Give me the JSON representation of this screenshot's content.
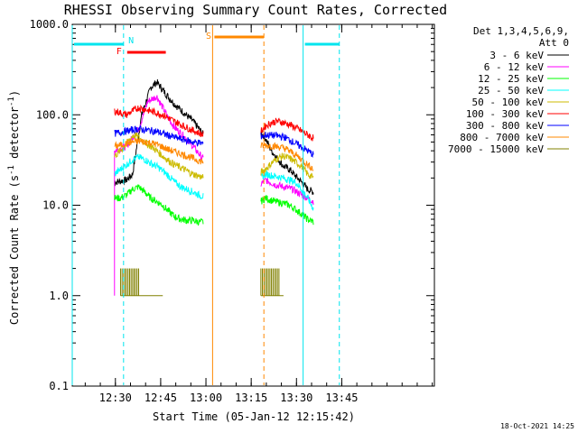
{
  "chart_data": {
    "type": "line",
    "title": "RHESSI Observing Summary Count Rates, Corrected",
    "xlabel": "Start Time (05-Jan-12 12:15:42)",
    "ylabel_main": "Corrected Count Rate (s",
    "ylabel_sup": "-1",
    "ylabel_mid": " detector",
    "ylabel_sup2": "-1",
    "ylabel_end": ")",
    "y_scale": "log",
    "ylim": [
      0.1,
      1000
    ],
    "xlim_minutes": [
      0,
      120
    ],
    "x_ticks": [
      {
        "t": 14.3,
        "label": "12:30"
      },
      {
        "t": 29.3,
        "label": "12:45"
      },
      {
        "t": 44.3,
        "label": "13:00"
      },
      {
        "t": 59.3,
        "label": "13:15"
      },
      {
        "t": 74.3,
        "label": "13:30"
      },
      {
        "t": 89.3,
        "label": "13:45"
      }
    ],
    "y_ticks": [
      {
        "v": 1000,
        "label": "1000.0"
      },
      {
        "v": 100,
        "label": "100.0"
      },
      {
        "v": 10,
        "label": "10.0"
      },
      {
        "v": 1,
        "label": "1.0"
      },
      {
        "v": 0.1,
        "label": "0.1"
      }
    ],
    "legend_header": [
      "Det 1,3,4,5,6,9,",
      "Att 0"
    ],
    "series": [
      {
        "name": "3 - 6 keV",
        "color": "#000000",
        "seg1": [
          [
            14.0,
            18
          ],
          [
            18,
            19
          ],
          [
            20,
            22
          ],
          [
            23,
            100
          ],
          [
            26,
            200
          ],
          [
            28,
            230
          ],
          [
            31,
            170
          ],
          [
            34,
            130
          ],
          [
            37,
            105
          ],
          [
            40,
            85
          ],
          [
            42,
            70
          ],
          [
            43.5,
            60
          ]
        ],
        "seg2": [
          [
            62.5,
            65
          ],
          [
            64,
            55
          ],
          [
            66,
            40
          ],
          [
            68,
            33
          ],
          [
            70,
            27
          ],
          [
            72,
            25
          ],
          [
            74,
            21
          ],
          [
            76,
            18
          ],
          [
            78,
            15
          ],
          [
            80,
            14
          ]
        ]
      },
      {
        "name": "6 - 12 keV",
        "color": "#ff00ff",
        "seg1": [
          [
            14.0,
            40
          ],
          [
            18,
            45
          ],
          [
            22,
            70
          ],
          [
            25,
            140
          ],
          [
            28,
            160
          ],
          [
            30,
            120
          ],
          [
            32,
            90
          ],
          [
            34,
            72
          ],
          [
            37,
            58
          ],
          [
            40,
            45
          ],
          [
            42,
            37
          ],
          [
            43.5,
            32
          ]
        ],
        "seg2": [
          [
            62.5,
            17
          ],
          [
            64,
            19
          ],
          [
            67,
            17
          ],
          [
            70,
            16
          ],
          [
            73,
            15
          ],
          [
            76,
            13
          ],
          [
            78,
            12
          ],
          [
            80,
            11
          ]
        ]
      },
      {
        "name": "12 - 25 keV",
        "color": "#00ff00",
        "seg1": [
          [
            14.0,
            12
          ],
          [
            16,
            12
          ],
          [
            18,
            13
          ],
          [
            20,
            15
          ],
          [
            22,
            16
          ],
          [
            24,
            14
          ],
          [
            26,
            12
          ],
          [
            28,
            11
          ],
          [
            30,
            10
          ],
          [
            32,
            8.5
          ],
          [
            34,
            7.5
          ],
          [
            36,
            7.0
          ],
          [
            38,
            6.8
          ],
          [
            40,
            6.8
          ],
          [
            42,
            6.5
          ],
          [
            43.5,
            6.5
          ]
        ],
        "seg2": [
          [
            62.5,
            11
          ],
          [
            64,
            12
          ],
          [
            67,
            11
          ],
          [
            70,
            10.5
          ],
          [
            72,
            10
          ],
          [
            74,
            9
          ],
          [
            76,
            8
          ],
          [
            78,
            7
          ],
          [
            80,
            6.5
          ]
        ]
      },
      {
        "name": "25 - 50 keV",
        "color": "#00ffff",
        "seg1": [
          [
            14.0,
            22
          ],
          [
            16,
            25
          ],
          [
            18,
            28
          ],
          [
            20,
            32
          ],
          [
            22,
            34
          ],
          [
            24,
            32
          ],
          [
            26,
            29
          ],
          [
            28,
            27
          ],
          [
            30,
            24
          ],
          [
            32,
            21
          ],
          [
            34,
            18
          ],
          [
            36,
            16
          ],
          [
            38,
            15
          ],
          [
            40,
            14
          ],
          [
            42,
            13
          ],
          [
            43.5,
            12.5
          ]
        ],
        "seg2": [
          [
            62.5,
            20
          ],
          [
            64,
            22
          ],
          [
            67,
            21
          ],
          [
            70,
            20
          ],
          [
            72,
            19
          ],
          [
            74,
            18
          ],
          [
            76,
            15
          ],
          [
            78,
            12
          ],
          [
            80,
            9
          ]
        ]
      },
      {
        "name": "50 - 100 keV",
        "color": "#ccbb00",
        "seg1": [
          [
            14.0,
            35
          ],
          [
            16,
            40
          ],
          [
            18,
            48
          ],
          [
            20,
            58
          ],
          [
            21,
            60
          ],
          [
            22,
            56
          ],
          [
            24,
            50
          ],
          [
            26,
            45
          ],
          [
            28,
            40
          ],
          [
            30,
            35
          ],
          [
            32,
            31
          ],
          [
            34,
            28
          ],
          [
            36,
            26
          ],
          [
            38,
            24
          ],
          [
            40,
            22
          ],
          [
            42,
            21
          ],
          [
            43.5,
            20
          ]
        ],
        "seg2": [
          [
            62.5,
            23
          ],
          [
            64,
            25
          ],
          [
            66,
            29
          ],
          [
            68,
            33
          ],
          [
            70,
            35
          ],
          [
            72,
            33
          ],
          [
            74,
            30
          ],
          [
            76,
            27
          ],
          [
            78,
            22
          ],
          [
            80,
            20
          ]
        ]
      },
      {
        "name": "100 - 300 keV",
        "color": "#ff0000",
        "seg1": [
          [
            14.0,
            110
          ],
          [
            16,
            105
          ],
          [
            18,
            100
          ],
          [
            20,
            110
          ],
          [
            22,
            120
          ],
          [
            24,
            115
          ],
          [
            26,
            110
          ],
          [
            28,
            105
          ],
          [
            30,
            100
          ],
          [
            32,
            92
          ],
          [
            34,
            84
          ],
          [
            36,
            78
          ],
          [
            38,
            72
          ],
          [
            40,
            67
          ],
          [
            42,
            63
          ],
          [
            43.5,
            60
          ]
        ],
        "seg2": [
          [
            62.5,
            65
          ],
          [
            64,
            75
          ],
          [
            66,
            82
          ],
          [
            68,
            85
          ],
          [
            70,
            82
          ],
          [
            72,
            78
          ],
          [
            74,
            72
          ],
          [
            76,
            66
          ],
          [
            78,
            60
          ],
          [
            80,
            55
          ]
        ]
      },
      {
        "name": "300 - 800 keV",
        "color": "#0000ff",
        "seg1": [
          [
            14.0,
            62
          ],
          [
            16,
            64
          ],
          [
            18,
            66
          ],
          [
            20,
            68
          ],
          [
            22,
            70
          ],
          [
            24,
            68
          ],
          [
            26,
            67
          ],
          [
            28,
            65
          ],
          [
            30,
            62
          ],
          [
            32,
            59
          ],
          [
            34,
            56
          ],
          [
            36,
            54
          ],
          [
            38,
            52
          ],
          [
            40,
            50
          ],
          [
            42,
            49
          ],
          [
            43.5,
            48
          ]
        ],
        "seg2": [
          [
            62.5,
            58
          ],
          [
            64,
            60
          ],
          [
            67,
            59
          ],
          [
            70,
            57
          ],
          [
            72,
            53
          ],
          [
            74,
            48
          ],
          [
            76,
            44
          ],
          [
            78,
            40
          ],
          [
            80,
            36
          ]
        ]
      },
      {
        "name": "800 - 7000 keV",
        "color": "#ff8800",
        "seg1": [
          [
            14.0,
            45
          ],
          [
            16,
            46
          ],
          [
            18,
            48
          ],
          [
            20,
            50
          ],
          [
            22,
            51
          ],
          [
            24,
            50
          ],
          [
            26,
            49
          ],
          [
            28,
            47
          ],
          [
            30,
            44
          ],
          [
            32,
            41
          ],
          [
            34,
            39
          ],
          [
            36,
            37
          ],
          [
            38,
            35
          ],
          [
            40,
            33
          ],
          [
            42,
            31
          ],
          [
            43.5,
            30
          ]
        ],
        "seg2": [
          [
            62.5,
            45
          ],
          [
            64,
            46
          ],
          [
            67,
            45
          ],
          [
            70,
            43
          ],
          [
            72,
            40
          ],
          [
            74,
            36
          ],
          [
            76,
            32
          ],
          [
            78,
            28
          ],
          [
            80,
            25
          ]
        ]
      },
      {
        "name": "7000 - 15000 keV",
        "color": "#808000",
        "seg1": [
          [
            16,
            1
          ],
          [
            30,
            1
          ]
        ],
        "seg2": [
          [
            62.5,
            1
          ],
          [
            70,
            1
          ]
        ]
      }
    ],
    "flag_bars": [
      {
        "label": "",
        "color": "#00e5ee",
        "level": 1000,
        "t0": 0,
        "t1": 17,
        "gap_note": "left bar"
      },
      {
        "label": "",
        "color": "#00e5ee",
        "level": 1000,
        "t0": 76.5,
        "t1": 88.5,
        "gap_note": "right bar"
      }
    ],
    "flag_labels": [
      {
        "text": "N",
        "color": "#00e5ee",
        "t": 18.6
      },
      {
        "text": "F",
        "color": "#ff0000",
        "t": 14.3
      },
      {
        "text": "S",
        "color": "#ff8800",
        "t": 44.3
      }
    ],
    "flare_bar": {
      "t0": 17,
      "t1": 31
    },
    "saa_bar": {
      "t0": 46.5,
      "t1": 63.5
    },
    "vlines": [
      {
        "t": 0.0,
        "color": "#00e5ee",
        "style": "solid"
      },
      {
        "t": 17.0,
        "color": "#00e5ee",
        "style": "dashed"
      },
      {
        "t": 46.5,
        "color": "#ff8800",
        "style": "solid"
      },
      {
        "t": 63.5,
        "color": "#ff8800",
        "style": "dashed"
      },
      {
        "t": 76.5,
        "color": "#00e5ee",
        "style": "solid"
      },
      {
        "t": 88.5,
        "color": "#00e5ee",
        "style": "dashed"
      }
    ]
  },
  "stamp": "18-Oct-2021 14:25"
}
